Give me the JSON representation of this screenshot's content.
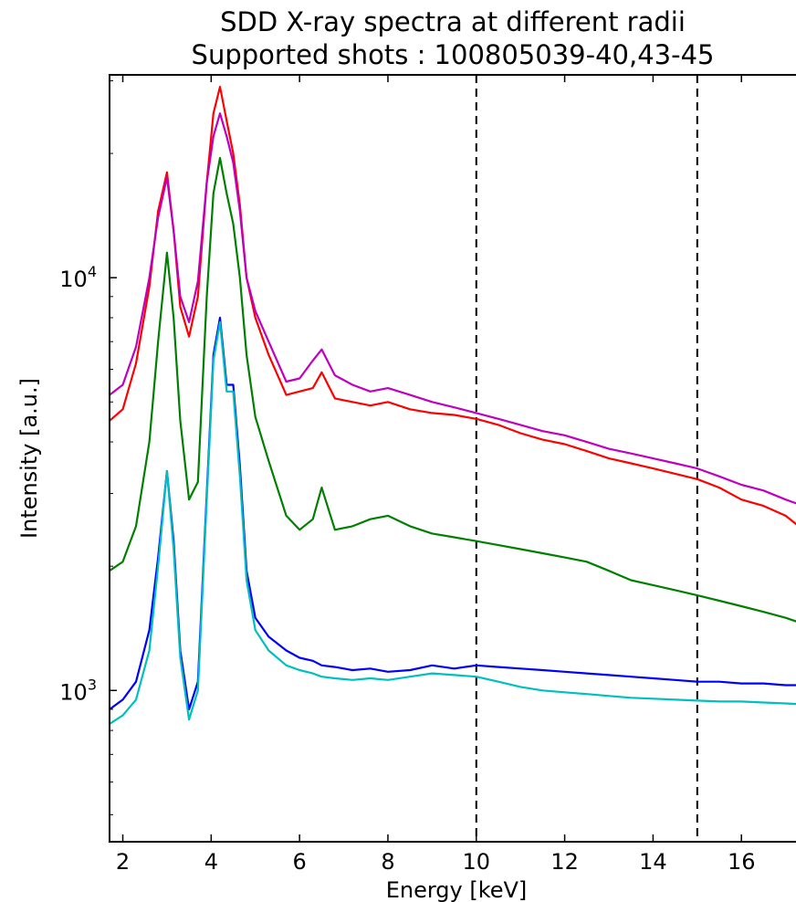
{
  "chart_data": {
    "type": "line",
    "title": "SDD X-ray spectra at different radii",
    "subtitle": "Supported shots : 100805039-40,43-45",
    "xlabel": "Energy [keV]",
    "ylabel": "Intensity [a.u.]",
    "xlim": [
      1.7,
      17.4
    ],
    "ylim": [
      430,
      31000
    ],
    "yscale": "log",
    "xticks": [
      2,
      4,
      6,
      8,
      10,
      12,
      14,
      16
    ],
    "yticks": [
      {
        "value": 1000,
        "base": "10",
        "exp": "3"
      },
      {
        "value": 10000,
        "base": "10",
        "exp": "4"
      }
    ],
    "vlines": [
      10,
      15
    ],
    "grid": false,
    "legend": "none",
    "x": [
      1.7,
      2.0,
      2.3,
      2.6,
      2.8,
      3.0,
      3.15,
      3.3,
      3.5,
      3.7,
      3.9,
      4.05,
      4.2,
      4.35,
      4.5,
      4.65,
      4.8,
      5.0,
      5.3,
      5.7,
      6.0,
      6.3,
      6.5,
      6.8,
      7.2,
      7.6,
      8.0,
      8.5,
      9.0,
      9.5,
      10.0,
      10.5,
      11.0,
      11.5,
      12.0,
      12.5,
      13.0,
      13.5,
      14.0,
      14.5,
      15.0,
      15.5,
      16.0,
      16.5,
      17.0,
      17.4
    ],
    "series": [
      {
        "color": "#ff0000",
        "values": [
          4500,
          4800,
          6200,
          9500,
          14500,
          18000,
          13000,
          8500,
          7200,
          9000,
          17000,
          25000,
          29000,
          24000,
          20000,
          15000,
          10000,
          8000,
          6500,
          5200,
          5300,
          5400,
          5900,
          5100,
          5000,
          4900,
          5000,
          4800,
          4700,
          4650,
          4550,
          4400,
          4200,
          4050,
          3950,
          3800,
          3650,
          3550,
          3450,
          3350,
          3250,
          3100,
          2900,
          2800,
          2650,
          2450
        ]
      },
      {
        "color": "#bf00bf",
        "values": [
          5200,
          5500,
          6800,
          10000,
          14000,
          17500,
          13000,
          9000,
          7800,
          9800,
          17000,
          22000,
          25000,
          22000,
          19000,
          14500,
          10000,
          8300,
          7000,
          5600,
          5700,
          6300,
          6700,
          5800,
          5500,
          5300,
          5400,
          5200,
          5000,
          4850,
          4700,
          4550,
          4400,
          4250,
          4150,
          4000,
          3850,
          3750,
          3650,
          3550,
          3450,
          3300,
          3150,
          3050,
          2900,
          2800
        ]
      },
      {
        "color": "#008000",
        "values": [
          1950,
          2050,
          2500,
          4000,
          7000,
          11500,
          8000,
          4500,
          2900,
          3200,
          9000,
          16000,
          19500,
          16000,
          13500,
          10000,
          6500,
          4600,
          3600,
          2650,
          2450,
          2600,
          3100,
          2450,
          2500,
          2600,
          2650,
          2500,
          2400,
          2350,
          2300,
          2250,
          2200,
          2150,
          2100,
          2050,
          1950,
          1850,
          1800,
          1750,
          1700,
          1650,
          1600,
          1550,
          1500,
          1450
        ]
      },
      {
        "color": "#0000ff",
        "values": [
          900,
          950,
          1050,
          1400,
          2100,
          3400,
          2300,
          1250,
          900,
          1050,
          3000,
          6500,
          8000,
          5500,
          5500,
          3500,
          1950,
          1500,
          1350,
          1250,
          1200,
          1180,
          1150,
          1140,
          1120,
          1130,
          1110,
          1120,
          1150,
          1130,
          1150,
          1140,
          1130,
          1120,
          1110,
          1100,
          1090,
          1080,
          1070,
          1060,
          1050,
          1050,
          1040,
          1040,
          1030,
          1030
        ]
      },
      {
        "color": "#00bfbf",
        "values": [
          830,
          870,
          950,
          1250,
          2000,
          3400,
          2200,
          1200,
          850,
          1000,
          2900,
          6300,
          7800,
          5300,
          5300,
          3300,
          1850,
          1400,
          1250,
          1150,
          1120,
          1100,
          1080,
          1070,
          1060,
          1070,
          1060,
          1080,
          1100,
          1090,
          1080,
          1050,
          1020,
          1000,
          990,
          980,
          970,
          960,
          955,
          950,
          945,
          940,
          940,
          935,
          930,
          925
        ]
      }
    ]
  }
}
